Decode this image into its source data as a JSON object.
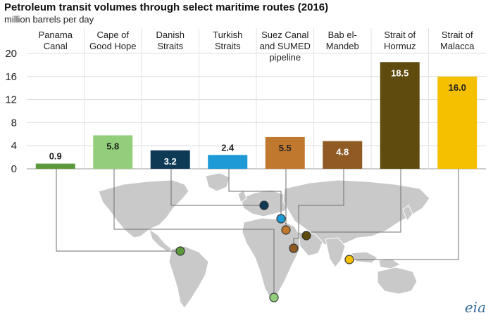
{
  "chart_data": {
    "type": "bar",
    "title": "Petroleum transit volumes through select maritime routes (2016)",
    "subtitle": "million barrels per day",
    "categories": [
      [
        "Panama",
        "Canal"
      ],
      [
        "Cape of",
        "Good Hope"
      ],
      [
        "Danish",
        "Straits"
      ],
      [
        "Turkish",
        "Straits"
      ],
      [
        "Suez Canal",
        "and SUMED",
        "pipeline"
      ],
      [
        "Bab el-",
        "Mandeb"
      ],
      [
        "Strait of",
        "Hormuz"
      ],
      [
        "Strait of",
        "Malacca"
      ]
    ],
    "values": [
      0.9,
      5.8,
      3.2,
      2.4,
      5.5,
      4.8,
      18.5,
      16.0
    ],
    "value_labels": [
      "0.9",
      "5.8",
      "3.2",
      "2.4",
      "5.5",
      "4.8",
      "18.5",
      "16.0"
    ],
    "colors": [
      "#5b9a3c",
      "#93cf7a",
      "#0f3a55",
      "#1e9ad6",
      "#c0782f",
      "#8f5a24",
      "#5e4b0d",
      "#f5c000"
    ],
    "label_colors": [
      "#222222",
      "#222222",
      "#ffffff",
      "#222222",
      "#222222",
      "#ffffff",
      "#ffffff",
      "#222222"
    ],
    "ylim": [
      0,
      20
    ],
    "yticks": [
      0,
      4,
      8,
      12,
      16,
      20
    ],
    "ytick_labels": [
      "0",
      "4",
      "8",
      "12",
      "16",
      "20"
    ],
    "grid": true,
    "xlabel": "",
    "ylabel": ""
  },
  "logo_text": "eia"
}
